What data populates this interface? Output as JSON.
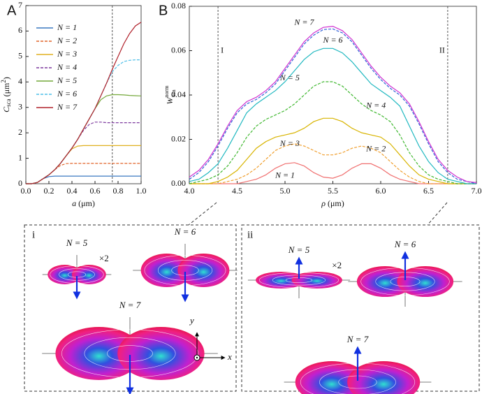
{
  "chart_data": [
    {
      "type": "line",
      "panel_label": "A",
      "xlabel": [
        "a",
        " (μm)"
      ],
      "ylabel": [
        "C",
        "sca",
        " (μm",
        "2",
        ")"
      ],
      "x": [
        0,
        0.05,
        0.1,
        0.15,
        0.2,
        0.25,
        0.3,
        0.35,
        0.4,
        0.45,
        0.5,
        0.55,
        0.6,
        0.65,
        0.7,
        0.75,
        0.8,
        0.85,
        0.9,
        0.95,
        1
      ],
      "xlim": [
        0,
        1
      ],
      "ylim": [
        0,
        7
      ],
      "xticks": [
        {
          "value": 0,
          "label": "0.0"
        },
        0.2,
        0.4,
        0.6,
        0.8,
        {
          "value": 1,
          "label": "1.0"
        }
      ],
      "yticks": [
        0,
        1,
        2,
        3,
        4,
        5,
        6,
        7
      ],
      "legend": "upper left",
      "vlines": [
        {
          "x": 0.75
        }
      ],
      "series": [
        {
          "name": "N = 1",
          "color": "#3a78c0",
          "style": "solid",
          "values": [
            0,
            0,
            0.05,
            0.2,
            0.28,
            0.3,
            0.3,
            0.3,
            0.3,
            0.3,
            0.3,
            0.3,
            0.3,
            0.3,
            0.3,
            0.3,
            0.3,
            0.3,
            0.3,
            0.3,
            0.3
          ]
        },
        {
          "name": "N = 2",
          "color": "#e2652a",
          "style": "dashed",
          "values": [
            0,
            0,
            0.05,
            0.2,
            0.35,
            0.55,
            0.72,
            0.79,
            0.8,
            0.8,
            0.8,
            0.8,
            0.8,
            0.8,
            0.8,
            0.8,
            0.8,
            0.8,
            0.8,
            0.8,
            0.8
          ]
        },
        {
          "name": "N = 3",
          "color": "#e0b020",
          "style": "solid",
          "values": [
            0,
            0,
            0.05,
            0.2,
            0.35,
            0.55,
            0.8,
            1.1,
            1.37,
            1.48,
            1.5,
            1.5,
            1.5,
            1.5,
            1.5,
            1.5,
            1.5,
            1.5,
            1.5,
            1.5,
            1.5
          ]
        },
        {
          "name": "N = 4",
          "color": "#7d3a9e",
          "style": "dashed",
          "values": [
            0,
            0,
            0.05,
            0.2,
            0.35,
            0.55,
            0.8,
            1.1,
            1.4,
            1.75,
            2.1,
            2.33,
            2.42,
            2.42,
            2.4,
            2.4,
            2.4,
            2.4,
            2.4,
            2.4,
            2.4
          ]
        },
        {
          "name": "N = 5",
          "color": "#74a83a",
          "style": "solid",
          "values": [
            0,
            0,
            0.05,
            0.2,
            0.35,
            0.55,
            0.8,
            1.1,
            1.4,
            1.75,
            2.15,
            2.55,
            2.95,
            3.3,
            3.45,
            3.5,
            3.5,
            3.49,
            3.47,
            3.46,
            3.45
          ]
        },
        {
          "name": "N = 6",
          "color": "#4fbfe8",
          "style": "dashed",
          "values": [
            0,
            0,
            0.05,
            0.2,
            0.35,
            0.55,
            0.8,
            1.1,
            1.4,
            1.75,
            2.15,
            2.55,
            2.95,
            3.45,
            3.95,
            4.4,
            4.65,
            4.8,
            4.85,
            4.87,
            4.87
          ]
        },
        {
          "name": "N = 7",
          "color": "#b0202a",
          "style": "solid",
          "values": [
            0,
            0,
            0.05,
            0.2,
            0.35,
            0.55,
            0.8,
            1.1,
            1.4,
            1.75,
            2.15,
            2.55,
            2.95,
            3.45,
            3.95,
            4.5,
            5.0,
            5.5,
            5.9,
            6.2,
            6.35
          ]
        }
      ]
    },
    {
      "type": "line",
      "panel_label": "B",
      "xlabel": [
        "ρ",
        " (μm)"
      ],
      "ylabel": [
        "W",
        "norm",
        "sca"
      ],
      "x": [
        4,
        4.1,
        4.2,
        4.3,
        4.4,
        4.5,
        4.6,
        4.7,
        4.8,
        4.9,
        5,
        5.1,
        5.2,
        5.3,
        5.4,
        5.5,
        5.6,
        5.7,
        5.8,
        5.9,
        6,
        6.1,
        6.2,
        6.3,
        6.4,
        6.5,
        6.6,
        6.7,
        6.8,
        6.9,
        7
      ],
      "xlim": [
        4,
        7
      ],
      "ylim": [
        0,
        0.08
      ],
      "xticks": [
        {
          "value": 4,
          "label": "4.0"
        },
        4.5,
        {
          "value": 5,
          "label": "5.0"
        },
        5.5,
        {
          "value": 6,
          "label": "6.0"
        },
        6.5,
        {
          "value": 7,
          "label": "7.0"
        }
      ],
      "yticks": [
        {
          "value": 0,
          "label": "0.00"
        },
        {
          "value": 0.02,
          "label": "0.02"
        },
        {
          "value": 0.04,
          "label": "0.04"
        },
        {
          "value": 0.06,
          "label": "0.06"
        },
        {
          "value": 0.08,
          "label": "0.08"
        }
      ],
      "legend": "inline",
      "vlines": [
        {
          "x": 4.3,
          "label": "I"
        },
        {
          "x": 6.7,
          "label": "II"
        }
      ],
      "series": [
        {
          "name": "N = 1",
          "color": "#f07070",
          "style": "solid",
          "values": [
            0,
            0,
            0,
            0,
            0,
            0,
            0.001,
            0.002,
            0.004,
            0.007,
            0.009,
            0.0095,
            0.008,
            0.005,
            0.003,
            0.0025,
            0.004,
            0.007,
            0.009,
            0.009,
            0.007,
            0.004,
            0.002,
            0.001,
            0,
            0,
            0,
            0,
            0,
            0,
            0
          ]
        },
        {
          "name": "N = 2",
          "color": "#f0a030",
          "style": "dashed",
          "values": [
            0,
            0,
            0,
            0,
            0.001,
            0.002,
            0.004,
            0.007,
            0.011,
            0.015,
            0.017,
            0.018,
            0.017,
            0.015,
            0.013,
            0.013,
            0.014,
            0.016,
            0.017,
            0.016,
            0.014,
            0.01,
            0.006,
            0.003,
            0.001,
            0,
            0,
            0,
            0,
            0,
            0
          ]
        },
        {
          "name": "N = 3",
          "color": "#d8b400",
          "style": "solid",
          "values": [
            0,
            0,
            0,
            0.001,
            0.003,
            0.006,
            0.011,
            0.016,
            0.019,
            0.021,
            0.022,
            0.023,
            0.025,
            0.028,
            0.0295,
            0.0295,
            0.028,
            0.025,
            0.023,
            0.022,
            0.021,
            0.018,
            0.013,
            0.008,
            0.004,
            0.002,
            0.001,
            0,
            0,
            0,
            0
          ]
        },
        {
          "name": "N = 4",
          "color": "#40b830",
          "style": "dashed",
          "values": [
            0,
            0.001,
            0.002,
            0.004,
            0.008,
            0.014,
            0.021,
            0.026,
            0.029,
            0.031,
            0.033,
            0.036,
            0.04,
            0.044,
            0.046,
            0.046,
            0.044,
            0.04,
            0.036,
            0.033,
            0.031,
            0.028,
            0.022,
            0.014,
            0.008,
            0.004,
            0.002,
            0.001,
            0,
            0,
            0
          ]
        },
        {
          "name": "N = 5",
          "color": "#20b8c0",
          "style": "solid",
          "values": [
            0.001,
            0.002,
            0.005,
            0.009,
            0.016,
            0.024,
            0.032,
            0.036,
            0.039,
            0.042,
            0.046,
            0.051,
            0.056,
            0.0595,
            0.061,
            0.061,
            0.059,
            0.055,
            0.05,
            0.045,
            0.042,
            0.039,
            0.035,
            0.026,
            0.017,
            0.01,
            0.005,
            0.002,
            0.001,
            0,
            0
          ]
        },
        {
          "name": "N = 6",
          "color": "#3060d8",
          "style": "dashed",
          "values": [
            0.002,
            0.005,
            0.01,
            0.017,
            0.025,
            0.032,
            0.036,
            0.038,
            0.041,
            0.045,
            0.051,
            0.057,
            0.063,
            0.067,
            0.0695,
            0.0698,
            0.068,
            0.064,
            0.058,
            0.052,
            0.047,
            0.043,
            0.04,
            0.035,
            0.027,
            0.018,
            0.01,
            0.005,
            0.002,
            0.001,
            0
          ]
        },
        {
          "name": "N = 7",
          "color": "#d030d0",
          "style": "solid",
          "values": [
            0.003,
            0.006,
            0.011,
            0.018,
            0.026,
            0.033,
            0.037,
            0.039,
            0.042,
            0.046,
            0.052,
            0.058,
            0.064,
            0.068,
            0.0705,
            0.071,
            0.069,
            0.065,
            0.059,
            0.053,
            0.048,
            0.044,
            0.041,
            0.036,
            0.028,
            0.019,
            0.011,
            0.006,
            0.003,
            0.001,
            0.0005
          ]
        }
      ]
    }
  ],
  "panels": [
    {
      "label": "i",
      "shapes": [
        {
          "name": "N = 5",
          "scale": "×2"
        },
        {
          "name": "N = 6"
        },
        {
          "name": "N = 7"
        }
      ],
      "axes": {
        "y": "y",
        "x": "x"
      }
    },
    {
      "label": "ii",
      "shapes": [
        {
          "name": "N = 5",
          "scale": "×2"
        },
        {
          "name": "N = 6"
        },
        {
          "name": "N = 7"
        }
      ]
    }
  ]
}
